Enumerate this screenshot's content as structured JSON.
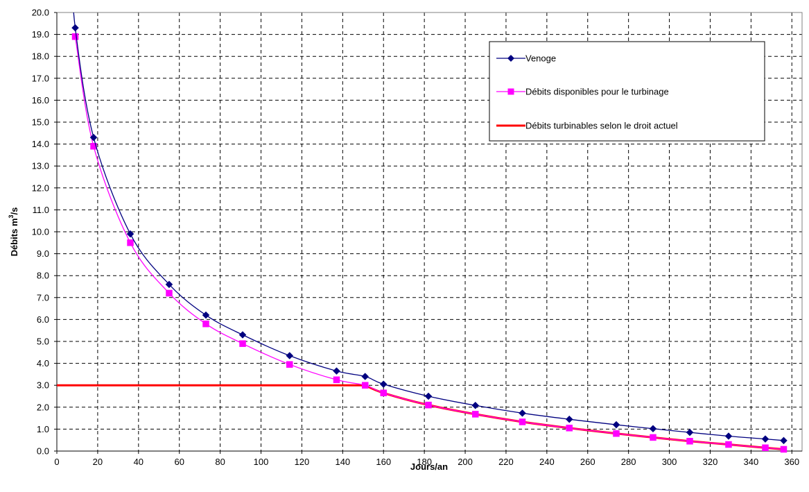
{
  "chart_data": {
    "type": "line",
    "xlabel": "Jours/an",
    "ylabel": "Débits m3/s",
    "ylabel_main": "Débits m",
    "ylabel_sup": "3",
    "ylabel_tail": "/s",
    "xlim": [
      0,
      365
    ],
    "ylim": [
      0,
      20
    ],
    "x_ticks": [
      "0",
      "20",
      "40",
      "60",
      "80",
      "100",
      "120",
      "140",
      "160",
      "180",
      "200",
      "220",
      "240",
      "260",
      "280",
      "300",
      "320",
      "340",
      "360"
    ],
    "y_ticks": [
      "0.0",
      "1.0",
      "2.0",
      "3.0",
      "4.0",
      "5.0",
      "6.0",
      "7.0",
      "8.0",
      "9.0",
      "10.0",
      "11.0",
      "12.0",
      "13.0",
      "14.0",
      "15.0",
      "16.0",
      "17.0",
      "18.0",
      "19.0",
      "20.0"
    ],
    "grid": true,
    "legend_position": "top-right",
    "series": [
      {
        "name": "Venoge",
        "color": "#000080",
        "marker": "diamond",
        "x": [
          9,
          18,
          36,
          55,
          73,
          91,
          114,
          137,
          151,
          160,
          182,
          205,
          228,
          251,
          274,
          292,
          310,
          329,
          347,
          356
        ],
        "y": [
          19.3,
          14.3,
          9.9,
          7.6,
          6.2,
          5.3,
          4.35,
          3.65,
          3.4,
          3.05,
          2.5,
          2.08,
          1.73,
          1.45,
          1.2,
          1.02,
          0.85,
          0.68,
          0.55,
          0.48
        ]
      },
      {
        "name": "Débits disponibles pour le turbinage",
        "color": "#ff00ff",
        "marker": "square",
        "x": [
          9,
          18,
          36,
          55,
          73,
          91,
          114,
          137,
          151,
          160,
          182,
          205,
          228,
          251,
          274,
          292,
          310,
          329,
          347,
          356
        ],
        "y": [
          18.9,
          13.9,
          9.5,
          7.2,
          5.8,
          4.9,
          3.95,
          3.25,
          3.0,
          2.65,
          2.1,
          1.68,
          1.33,
          1.05,
          0.8,
          0.62,
          0.45,
          0.3,
          0.15,
          0.08
        ]
      },
      {
        "name": "Débits turbinables selon le droit actuel",
        "color": "#ff0000",
        "marker": "none",
        "x": [
          0,
          151,
          160,
          182,
          205,
          228,
          251,
          274,
          292,
          310,
          329,
          347,
          356
        ],
        "y": [
          3.0,
          3.0,
          2.65,
          2.1,
          1.68,
          1.33,
          1.05,
          0.8,
          0.62,
          0.45,
          0.3,
          0.15,
          0.08
        ]
      }
    ]
  }
}
